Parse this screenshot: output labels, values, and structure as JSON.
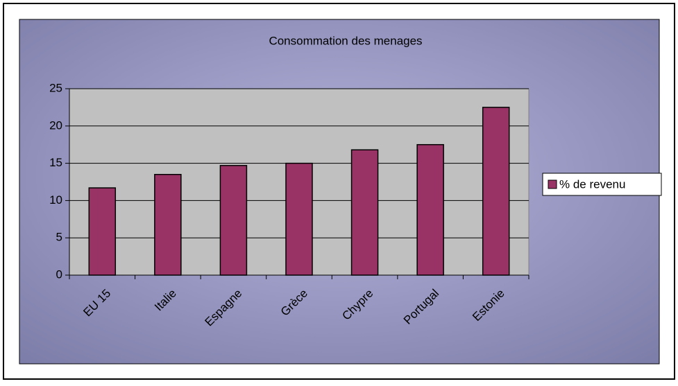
{
  "chart_data": {
    "type": "bar",
    "title": "Consommation des menages",
    "categories": [
      "EU 15",
      "Italie",
      "Espagne",
      "Grèce",
      "Chypre",
      "Portugal",
      "Estonie"
    ],
    "series": [
      {
        "name": "% de revenu",
        "color": "#993366",
        "values": [
          11.7,
          13.5,
          14.7,
          15.0,
          16.8,
          17.5,
          22.5
        ]
      }
    ],
    "ylim": [
      0,
      25
    ],
    "yticks": [
      0,
      5,
      10,
      15,
      20,
      25
    ],
    "grid": true,
    "legend": "right"
  }
}
